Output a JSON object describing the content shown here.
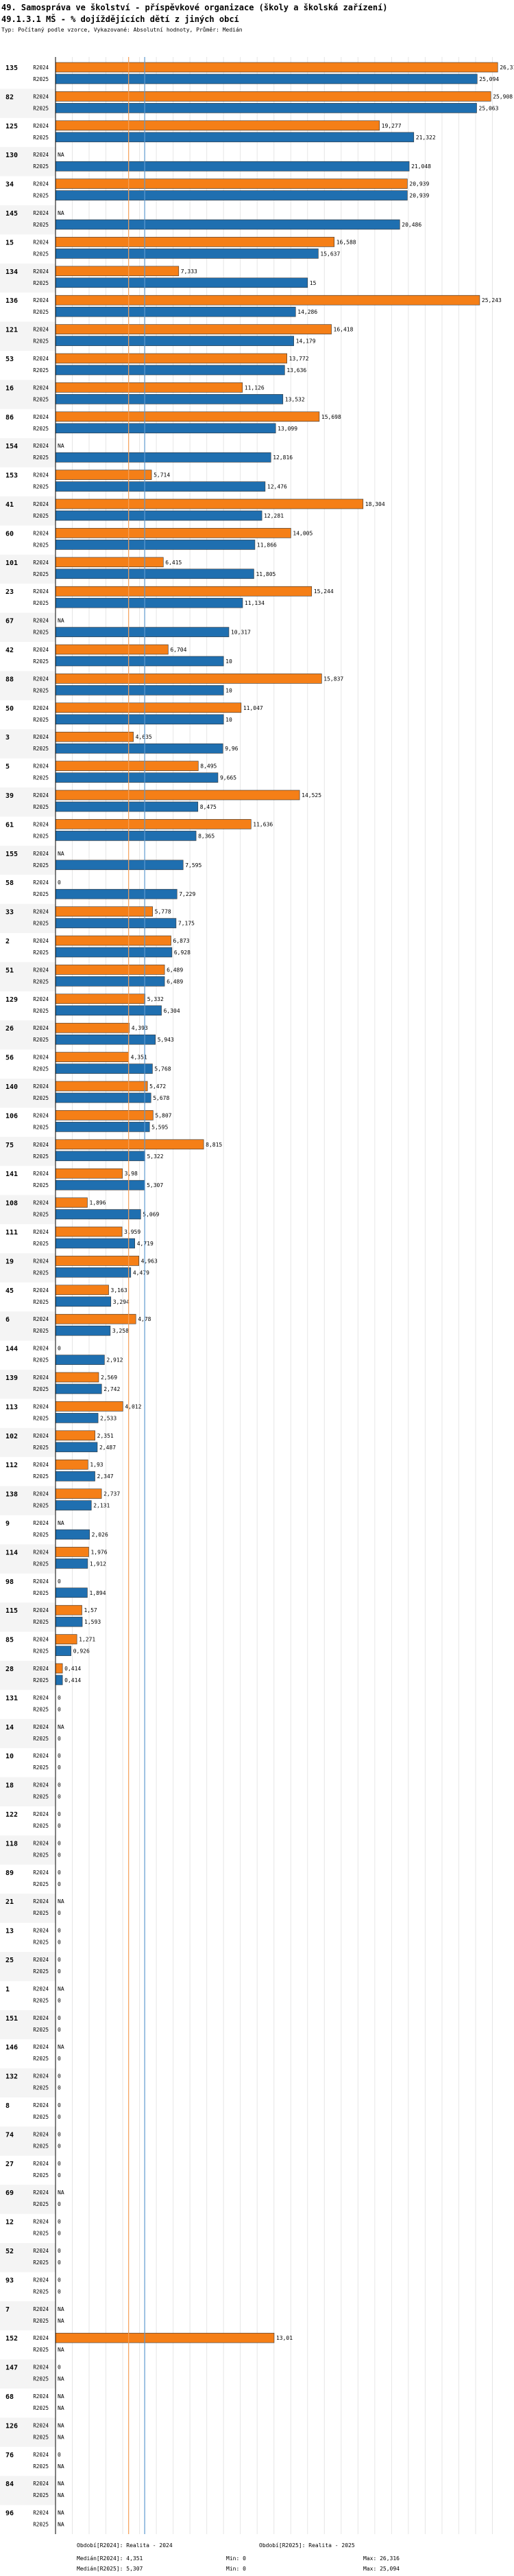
{
  "header": {
    "title": "49. Samospráva ve školství - příspěvkové organizace (školy a školská zařízení)",
    "subtitle": "49.1.3.1 MŠ - % dojíždějících dětí z jiných obcí",
    "note": "Typ: Počítaný podle vzorce, Vykazované: Absolutní hodnoty, Průměr: Medián"
  },
  "colors": {
    "r2024": "#f57f17",
    "r2025": "#1f6fb0",
    "grid": "#e6e6e6",
    "median2024": "#f5a15a",
    "median2025": "#5e9ad0"
  },
  "chart_data": {
    "type": "bar",
    "orientation": "horizontal",
    "xlim": [
      0,
      27
    ],
    "series_names": [
      "R2024",
      "R2025"
    ],
    "na_label": "NA",
    "medians": {
      "R2024": 4.351,
      "R2025": 5.307
    },
    "categories": [
      {
        "id": "135",
        "r2024": 26.316,
        "r2025": 25.094
      },
      {
        "id": "82",
        "r2024": 25.908,
        "r2025": 25.063
      },
      {
        "id": "125",
        "r2024": 19.277,
        "r2025": 21.322
      },
      {
        "id": "130",
        "r2024": null,
        "r2025": 21.048
      },
      {
        "id": "34",
        "r2024": 20.939,
        "r2025": 20.939
      },
      {
        "id": "145",
        "r2024": null,
        "r2025": 20.486
      },
      {
        "id": "15",
        "r2024": 16.588,
        "r2025": 15.637
      },
      {
        "id": "134",
        "r2024": 7.333,
        "r2025": 15
      },
      {
        "id": "136",
        "r2024": 25.243,
        "r2025": 14.286
      },
      {
        "id": "121",
        "r2024": 16.418,
        "r2025": 14.179
      },
      {
        "id": "53",
        "r2024": 13.772,
        "r2025": 13.636
      },
      {
        "id": "16",
        "r2024": 11.126,
        "r2025": 13.532
      },
      {
        "id": "86",
        "r2024": 15.698,
        "r2025": 13.099
      },
      {
        "id": "154",
        "r2024": null,
        "r2025": 12.816
      },
      {
        "id": "153",
        "r2024": 5.714,
        "r2025": 12.476
      },
      {
        "id": "41",
        "r2024": 18.304,
        "r2025": 12.281
      },
      {
        "id": "60",
        "r2024": 14.005,
        "r2025": 11.866
      },
      {
        "id": "101",
        "r2024": 6.415,
        "r2025": 11.805
      },
      {
        "id": "23",
        "r2024": 15.244,
        "r2025": 11.134
      },
      {
        "id": "67",
        "r2024": null,
        "r2025": 10.317
      },
      {
        "id": "42",
        "r2024": 6.704,
        "r2025": 10
      },
      {
        "id": "88",
        "r2024": 15.837,
        "r2025": 10
      },
      {
        "id": "50",
        "r2024": 11.047,
        "r2025": 10
      },
      {
        "id": "3",
        "r2024": 4.635,
        "r2025": 9.96
      },
      {
        "id": "5",
        "r2024": 8.495,
        "r2025": 9.665
      },
      {
        "id": "39",
        "r2024": 14.525,
        "r2025": 8.475
      },
      {
        "id": "61",
        "r2024": 11.636,
        "r2025": 8.365
      },
      {
        "id": "155",
        "r2024": null,
        "r2025": 7.595
      },
      {
        "id": "58",
        "r2024": 0,
        "r2025": 7.229
      },
      {
        "id": "33",
        "r2024": 5.778,
        "r2025": 7.175
      },
      {
        "id": "2",
        "r2024": 6.873,
        "r2025": 6.928
      },
      {
        "id": "51",
        "r2024": 6.489,
        "r2025": 6.489
      },
      {
        "id": "129",
        "r2024": 5.332,
        "r2025": 6.304
      },
      {
        "id": "26",
        "r2024": 4.393,
        "r2025": 5.943
      },
      {
        "id": "56",
        "r2024": 4.351,
        "r2025": 5.768
      },
      {
        "id": "140",
        "r2024": 5.472,
        "r2025": 5.678
      },
      {
        "id": "106",
        "r2024": 5.807,
        "r2025": 5.595
      },
      {
        "id": "75",
        "r2024": 8.815,
        "r2025": 5.322
      },
      {
        "id": "141",
        "r2024": 3.98,
        "r2025": 5.307
      },
      {
        "id": "108",
        "r2024": 1.896,
        "r2025": 5.069
      },
      {
        "id": "111",
        "r2024": 3.959,
        "r2025": 4.719
      },
      {
        "id": "19",
        "r2024": 4.963,
        "r2025": 4.479
      },
      {
        "id": "45",
        "r2024": 3.163,
        "r2025": 3.294
      },
      {
        "id": "6",
        "r2024": 4.78,
        "r2025": 3.258
      },
      {
        "id": "144",
        "r2024": 0,
        "r2025": 2.912
      },
      {
        "id": "139",
        "r2024": 2.569,
        "r2025": 2.742
      },
      {
        "id": "113",
        "r2024": 4.012,
        "r2025": 2.533
      },
      {
        "id": "102",
        "r2024": 2.351,
        "r2025": 2.487
      },
      {
        "id": "112",
        "r2024": 1.93,
        "r2025": 2.347
      },
      {
        "id": "138",
        "r2024": 2.737,
        "r2025": 2.131
      },
      {
        "id": "9",
        "r2024": null,
        "r2025": 2.026
      },
      {
        "id": "114",
        "r2024": 1.976,
        "r2025": 1.912
      },
      {
        "id": "98",
        "r2024": 0,
        "r2025": 1.894
      },
      {
        "id": "115",
        "r2024": 1.57,
        "r2025": 1.593
      },
      {
        "id": "85",
        "r2024": 1.271,
        "r2025": 0.926
      },
      {
        "id": "28",
        "r2024": 0.414,
        "r2025": 0.414
      },
      {
        "id": "131",
        "r2024": 0,
        "r2025": 0
      },
      {
        "id": "14",
        "r2024": null,
        "r2025": 0
      },
      {
        "id": "10",
        "r2024": 0,
        "r2025": 0
      },
      {
        "id": "18",
        "r2024": 0,
        "r2025": 0
      },
      {
        "id": "122",
        "r2024": 0,
        "r2025": 0
      },
      {
        "id": "118",
        "r2024": 0,
        "r2025": 0
      },
      {
        "id": "89",
        "r2024": 0,
        "r2025": 0
      },
      {
        "id": "21",
        "r2024": null,
        "r2025": 0
      },
      {
        "id": "13",
        "r2024": 0,
        "r2025": 0
      },
      {
        "id": "25",
        "r2024": 0,
        "r2025": 0
      },
      {
        "id": "1",
        "r2024": null,
        "r2025": 0
      },
      {
        "id": "151",
        "r2024": 0,
        "r2025": 0
      },
      {
        "id": "146",
        "r2024": null,
        "r2025": 0
      },
      {
        "id": "132",
        "r2024": 0,
        "r2025": 0
      },
      {
        "id": "8",
        "r2024": 0,
        "r2025": 0
      },
      {
        "id": "74",
        "r2024": 0,
        "r2025": 0
      },
      {
        "id": "27",
        "r2024": 0,
        "r2025": 0
      },
      {
        "id": "69",
        "r2024": null,
        "r2025": 0
      },
      {
        "id": "12",
        "r2024": 0,
        "r2025": 0
      },
      {
        "id": "52",
        "r2024": 0,
        "r2025": 0
      },
      {
        "id": "93",
        "r2024": 0,
        "r2025": 0
      },
      {
        "id": "7",
        "r2024": null,
        "r2025": null
      },
      {
        "id": "152",
        "r2024": 13.01,
        "r2025": null
      },
      {
        "id": "147",
        "r2024": 0,
        "r2025": null
      },
      {
        "id": "68",
        "r2024": null,
        "r2025": null
      },
      {
        "id": "126",
        "r2024": null,
        "r2025": null
      },
      {
        "id": "76",
        "r2024": 0,
        "r2025": null
      },
      {
        "id": "84",
        "r2024": null,
        "r2025": null
      },
      {
        "id": "96",
        "r2024": null,
        "r2025": null
      }
    ]
  },
  "footer": {
    "period2024": "Období[R2024]: Realita - 2024",
    "period2025": "Období[R2025]: Realita - 2025",
    "median2024": "Medián[R2024]: 4,351",
    "median2025": "Medián[R2025]: 5,307",
    "min2024": "Min: 0",
    "min2025": "Min: 0",
    "max2024": "Max: 26,316",
    "max2025": "Max: 25,094"
  }
}
